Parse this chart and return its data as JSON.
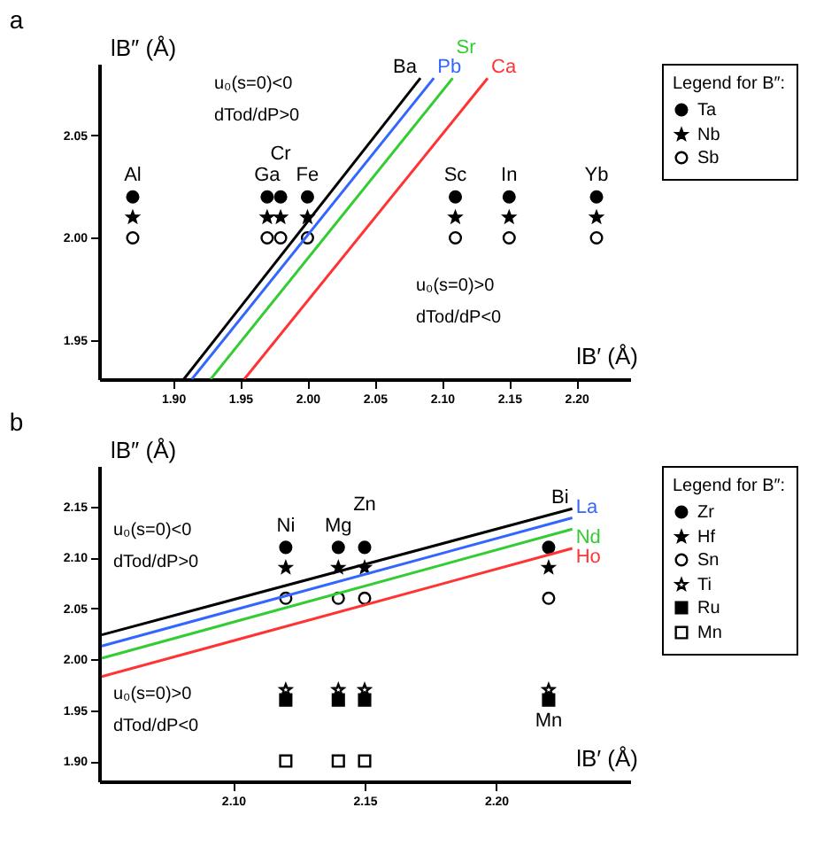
{
  "chart_data": [
    {
      "type": "scatter",
      "title": "a",
      "xlabel": "lB′ (Å)",
      "ylabel": "lB″ (Å)",
      "legend_title": "Legend for B″:",
      "legend": "top right",
      "grid": false,
      "xlim": [
        1.845,
        2.24
      ],
      "ylim": [
        1.931,
        2.085
      ],
      "xticks": [
        {
          "value": 1.9,
          "label": "1.90"
        },
        {
          "value": 1.95,
          "label": "1.95"
        },
        {
          "value": 2.0,
          "label": "2.00"
        },
        {
          "value": 2.05,
          "label": "2.05"
        },
        {
          "value": 2.1,
          "label": "2.10"
        },
        {
          "value": 2.15,
          "label": "2.15"
        },
        {
          "value": 2.2,
          "label": "2.20"
        }
      ],
      "yticks": [
        {
          "value": 1.95,
          "label": "1.95"
        },
        {
          "value": 2.0,
          "label": "2.00"
        },
        {
          "value": 2.05,
          "label": "2.05"
        }
      ],
      "series": [
        {
          "name": "Ta",
          "color": "#000000",
          "marker": "circle",
          "x": [
            1.87,
            1.97,
            1.98,
            2.0,
            2.11,
            2.15,
            2.215
          ],
          "values": [
            2.02,
            2.02,
            2.02,
            2.02,
            2.02,
            2.02,
            2.02
          ]
        },
        {
          "name": "Nb",
          "color": "#000000",
          "marker": "star",
          "x": [
            1.87,
            1.97,
            1.98,
            2.0,
            2.11,
            2.15,
            2.215
          ],
          "values": [
            2.01,
            2.01,
            2.01,
            2.01,
            2.01,
            2.01,
            2.01
          ]
        },
        {
          "name": "Sb",
          "color": "#ffffff",
          "marker": "circle",
          "x": [
            1.87,
            1.97,
            1.98,
            2.0,
            2.11,
            2.15,
            2.215
          ],
          "values": [
            2.0,
            2.0,
            2.0,
            2.0,
            2.0,
            2.0,
            2.0
          ]
        },
        {
          "type": "line",
          "name": "Ba",
          "color": "#000000",
          "x": [
            1.908,
            2.084
          ],
          "values": [
            1.931,
            2.078
          ]
        },
        {
          "type": "line",
          "name": "Pb",
          "color": "#3366ff",
          "x": [
            1.914,
            2.094
          ],
          "values": [
            1.931,
            2.078
          ]
        },
        {
          "type": "line",
          "name": "Sr",
          "color": "#33cc33",
          "x": [
            1.928,
            2.108
          ],
          "values": [
            1.931,
            2.078
          ]
        },
        {
          "type": "line",
          "name": "Ca",
          "color": "#ff3333",
          "x": [
            1.953,
            2.134
          ],
          "values": [
            1.931,
            2.078
          ]
        }
      ],
      "annotations": [
        "u₀(s=0)<0",
        "dTod/dP>0",
        "u₀(s=0)>0",
        "dTod/dP<0",
        {
          "text": "Al",
          "x": 1.87,
          "y": 2.02
        },
        {
          "text": "Ga",
          "x": 1.97,
          "y": 2.02
        },
        {
          "text": "Cr",
          "x": 1.98,
          "y": 2.02
        },
        {
          "text": "Fe",
          "x": 2.0,
          "y": 2.02
        },
        {
          "text": "Sc",
          "x": 2.11,
          "y": 2.02
        },
        {
          "text": "In",
          "x": 2.15,
          "y": 2.02
        },
        {
          "text": "Yb",
          "x": 2.215,
          "y": 2.02
        }
      ]
    },
    {
      "type": "scatter",
      "title": "b",
      "xlabel": "lB′ (Å)",
      "ylabel": "lB″ (Å)",
      "legend_title": "Legend for B″:",
      "legend": "top right",
      "grid": false,
      "xlim": [
        2.049,
        2.251
      ],
      "ylim": [
        1.88,
        2.19
      ],
      "xticks": [
        {
          "value": 2.1,
          "label": "2.10"
        },
        {
          "value": 2.15,
          "label": "2.15"
        },
        {
          "value": 2.2,
          "label": "2.20"
        }
      ],
      "yticks": [
        {
          "value": 1.9,
          "label": "1.90"
        },
        {
          "value": 1.95,
          "label": "1.95"
        },
        {
          "value": 2.0,
          "label": "2.00"
        },
        {
          "value": 2.05,
          "label": "2.05"
        },
        {
          "value": 2.1,
          "label": "2.10"
        },
        {
          "value": 2.15,
          "label": "2.15"
        }
      ],
      "series": [
        {
          "name": "Zr",
          "color": "#000000",
          "marker": "circle",
          "x": [
            2.12,
            2.14,
            2.15,
            2.22
          ],
          "values": [
            2.11,
            2.11,
            2.11,
            2.11
          ]
        },
        {
          "name": "Hf",
          "color": "#000000",
          "marker": "star",
          "x": [
            2.12,
            2.14,
            2.15,
            2.22
          ],
          "values": [
            2.09,
            2.09,
            2.09,
            2.09
          ]
        },
        {
          "name": "Sn",
          "color": "#ffffff",
          "marker": "circle",
          "x": [
            2.12,
            2.14,
            2.15,
            2.22
          ],
          "values": [
            2.06,
            2.06,
            2.06,
            2.06
          ]
        },
        {
          "name": "Ti",
          "color": "#ffffff",
          "marker": "star",
          "x": [
            2.12,
            2.14,
            2.15,
            2.22
          ],
          "values": [
            1.97,
            1.97,
            1.97,
            1.97
          ]
        },
        {
          "name": "Ru",
          "color": "#000000",
          "marker": "square",
          "x": [
            2.12,
            2.14,
            2.15,
            2.22
          ],
          "values": [
            1.96,
            1.96,
            1.96,
            1.96
          ]
        },
        {
          "name": "Mn",
          "color": "#ffffff",
          "marker": "square",
          "x": [
            2.12,
            2.14,
            2.15
          ],
          "values": [
            1.9,
            1.9,
            1.9
          ]
        },
        {
          "type": "line",
          "name": "Bi",
          "color": "#000000",
          "x": [
            2.05,
            2.229
          ],
          "values": [
            2.024,
            2.148
          ]
        },
        {
          "type": "line",
          "name": "La",
          "color": "#3366ff",
          "x": [
            2.05,
            2.229
          ],
          "values": [
            2.013,
            2.139
          ]
        },
        {
          "type": "line",
          "name": "Nd",
          "color": "#33cc33",
          "x": [
            2.05,
            2.229
          ],
          "values": [
            2.001,
            2.128
          ]
        },
        {
          "type": "line",
          "name": "Ho",
          "color": "#ff3333",
          "x": [
            2.05,
            2.229
          ],
          "values": [
            1.983,
            2.109
          ]
        }
      ],
      "annotations": [
        "u₀(s=0)<0",
        "dTod/dP>0",
        "u₀(s=0)>0",
        "dTod/dP<0",
        {
          "text": "Ni",
          "x": 2.12,
          "y": 2.11
        },
        {
          "text": "Mg",
          "x": 2.14,
          "y": 2.11
        },
        {
          "text": "Zn",
          "x": 2.15,
          "y": 2.11
        },
        {
          "text": "Mn",
          "x": 2.22,
          "y": 1.96
        }
      ]
    }
  ]
}
